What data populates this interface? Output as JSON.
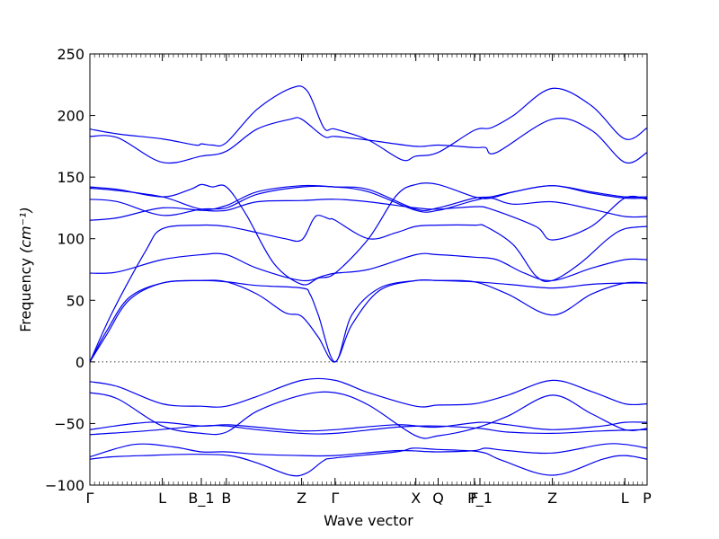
{
  "chart_data": {
    "type": "line",
    "xlabel": "Wave vector",
    "ylabel": "Frequency",
    "ylabel_unit": "(cm⁻¹)",
    "ylim": [
      -100,
      250
    ],
    "yticks": [
      -100,
      -50,
      0,
      50,
      100,
      150,
      200,
      250
    ],
    "grid": false,
    "zero_line": "dotted",
    "line_color": "#0000ee",
    "xticks": [
      {
        "label": "Γ",
        "x": 0.0
      },
      {
        "label": "L",
        "x": 0.13
      },
      {
        "label": "B_1",
        "x": 0.2
      },
      {
        "label": "B",
        "x": 0.245
      },
      {
        "label": "Z",
        "x": 0.38
      },
      {
        "label": "Γ",
        "x": 0.44
      },
      {
        "label": "X",
        "x": 0.585
      },
      {
        "label": "Q",
        "x": 0.625
      },
      {
        "label": "F",
        "x": 0.69
      },
      {
        "label": "P_1",
        "x": 0.7
      },
      {
        "label": "Z",
        "x": 0.83
      },
      {
        "label": "L",
        "x": 0.96
      },
      {
        "label": "P",
        "x": 1.0
      }
    ],
    "x_range": [
      0,
      1
    ],
    "series": [
      {
        "values": [
          [
            0,
            -79
          ],
          [
            0.04,
            -77
          ],
          [
            0.1,
            -76
          ],
          [
            0.18,
            -75
          ],
          [
            0.25,
            -76
          ],
          [
            0.3,
            -82
          ],
          [
            0.36,
            -92
          ],
          [
            0.39,
            -90
          ],
          [
            0.42,
            -80
          ],
          [
            0.44,
            -78
          ],
          [
            0.55,
            -73
          ],
          [
            0.58,
            -70
          ],
          [
            0.62,
            -71
          ],
          [
            0.7,
            -73
          ],
          [
            0.74,
            -80
          ],
          [
            0.83,
            -92
          ],
          [
            0.92,
            -79
          ],
          [
            0.96,
            -76
          ],
          [
            1.0,
            -79
          ]
        ]
      },
      {
        "values": [
          [
            0,
            -77
          ],
          [
            0.08,
            -67
          ],
          [
            0.15,
            -69
          ],
          [
            0.2,
            -73
          ],
          [
            0.245,
            -73
          ],
          [
            0.3,
            -75
          ],
          [
            0.38,
            -76
          ],
          [
            0.44,
            -76
          ],
          [
            0.55,
            -72
          ],
          [
            0.62,
            -73
          ],
          [
            0.69,
            -72
          ],
          [
            0.71,
            -70
          ],
          [
            0.75,
            -72
          ],
          [
            0.83,
            -74
          ],
          [
            0.92,
            -67
          ],
          [
            0.96,
            -67
          ],
          [
            1.0,
            -70
          ]
        ]
      },
      {
        "values": [
          [
            0,
            -59
          ],
          [
            0.1,
            -56
          ],
          [
            0.2,
            -52
          ],
          [
            0.245,
            -52
          ],
          [
            0.3,
            -55
          ],
          [
            0.38,
            -58
          ],
          [
            0.44,
            -58
          ],
          [
            0.55,
            -53
          ],
          [
            0.62,
            -52
          ],
          [
            0.7,
            -54
          ],
          [
            0.75,
            -57
          ],
          [
            0.83,
            -58
          ],
          [
            0.92,
            -56
          ],
          [
            1.0,
            -55
          ]
        ]
      },
      {
        "values": [
          [
            0,
            -55
          ],
          [
            0.08,
            -50
          ],
          [
            0.13,
            -49
          ],
          [
            0.2,
            -52
          ],
          [
            0.245,
            -51
          ],
          [
            0.3,
            -53
          ],
          [
            0.38,
            -56
          ],
          [
            0.44,
            -55
          ],
          [
            0.55,
            -51
          ],
          [
            0.62,
            -53
          ],
          [
            0.7,
            -49
          ],
          [
            0.75,
            -51
          ],
          [
            0.83,
            -55
          ],
          [
            0.92,
            -52
          ],
          [
            0.96,
            -49
          ],
          [
            1.0,
            -49
          ]
        ]
      },
      {
        "values": [
          [
            0,
            -25
          ],
          [
            0.05,
            -30
          ],
          [
            0.13,
            -52
          ],
          [
            0.2,
            -58
          ],
          [
            0.245,
            -57
          ],
          [
            0.3,
            -40
          ],
          [
            0.38,
            -27
          ],
          [
            0.44,
            -25
          ],
          [
            0.5,
            -35
          ],
          [
            0.585,
            -60
          ],
          [
            0.625,
            -60
          ],
          [
            0.69,
            -54
          ],
          [
            0.75,
            -44
          ],
          [
            0.83,
            -27
          ],
          [
            0.9,
            -42
          ],
          [
            0.96,
            -55
          ],
          [
            1.0,
            -54
          ]
        ]
      },
      {
        "values": [
          [
            0,
            -16
          ],
          [
            0.05,
            -20
          ],
          [
            0.13,
            -34
          ],
          [
            0.2,
            -36
          ],
          [
            0.245,
            -36
          ],
          [
            0.3,
            -28
          ],
          [
            0.38,
            -15
          ],
          [
            0.44,
            -15
          ],
          [
            0.5,
            -25
          ],
          [
            0.585,
            -36
          ],
          [
            0.625,
            -35
          ],
          [
            0.69,
            -34
          ],
          [
            0.75,
            -27
          ],
          [
            0.83,
            -15
          ],
          [
            0.9,
            -24
          ],
          [
            0.96,
            -34
          ],
          [
            1.0,
            -34
          ]
        ]
      },
      {
        "values": [
          [
            0,
            0
          ],
          [
            0.03,
            25
          ],
          [
            0.07,
            52
          ],
          [
            0.13,
            64
          ],
          [
            0.2,
            66
          ],
          [
            0.245,
            65
          ],
          [
            0.3,
            62
          ],
          [
            0.38,
            60
          ],
          [
            0.395,
            55
          ],
          [
            0.41,
            38
          ],
          [
            0.44,
            0
          ],
          [
            0.47,
            38
          ],
          [
            0.52,
            60
          ],
          [
            0.585,
            66
          ],
          [
            0.625,
            66
          ],
          [
            0.69,
            65
          ],
          [
            0.75,
            63
          ],
          [
            0.83,
            60
          ],
          [
            0.9,
            63
          ],
          [
            0.96,
            64
          ],
          [
            1.0,
            64
          ]
        ]
      },
      {
        "values": [
          [
            0,
            0
          ],
          [
            0.03,
            22
          ],
          [
            0.07,
            50
          ],
          [
            0.13,
            64
          ],
          [
            0.2,
            66
          ],
          [
            0.245,
            65
          ],
          [
            0.3,
            55
          ],
          [
            0.35,
            40
          ],
          [
            0.38,
            37
          ],
          [
            0.41,
            20
          ],
          [
            0.44,
            0
          ],
          [
            0.47,
            30
          ],
          [
            0.52,
            58
          ],
          [
            0.585,
            66
          ],
          [
            0.625,
            66
          ],
          [
            0.69,
            65
          ],
          [
            0.75,
            55
          ],
          [
            0.83,
            38
          ],
          [
            0.9,
            55
          ],
          [
            0.96,
            64
          ],
          [
            1.0,
            64
          ]
        ]
      },
      {
        "values": [
          [
            0,
            72
          ],
          [
            0.05,
            73
          ],
          [
            0.13,
            83
          ],
          [
            0.2,
            87
          ],
          [
            0.245,
            87
          ],
          [
            0.3,
            76
          ],
          [
            0.38,
            66
          ],
          [
            0.42,
            70
          ],
          [
            0.44,
            72
          ],
          [
            0.5,
            75
          ],
          [
            0.585,
            87
          ],
          [
            0.625,
            87
          ],
          [
            0.69,
            85
          ],
          [
            0.73,
            83
          ],
          [
            0.78,
            72
          ],
          [
            0.83,
            66
          ],
          [
            0.9,
            76
          ],
          [
            0.96,
            83
          ],
          [
            1.0,
            83
          ]
        ]
      },
      {
        "values": [
          [
            0,
            0
          ],
          [
            0.04,
            40
          ],
          [
            0.1,
            90
          ],
          [
            0.13,
            108
          ],
          [
            0.2,
            111
          ],
          [
            0.245,
            110
          ],
          [
            0.3,
            105
          ],
          [
            0.35,
            100
          ],
          [
            0.38,
            99
          ],
          [
            0.4,
            115
          ],
          [
            0.41,
            119
          ],
          [
            0.43,
            116
          ],
          [
            0.44,
            115
          ],
          [
            0.5,
            100
          ],
          [
            0.55,
            105
          ],
          [
            0.585,
            110
          ],
          [
            0.625,
            111
          ],
          [
            0.69,
            111
          ],
          [
            0.71,
            110
          ],
          [
            0.76,
            95
          ],
          [
            0.8,
            70
          ],
          [
            0.83,
            66
          ],
          [
            0.88,
            80
          ],
          [
            0.93,
            100
          ],
          [
            0.96,
            108
          ],
          [
            1.0,
            110
          ]
        ]
      },
      {
        "values": [
          [
            0,
            115
          ],
          [
            0.05,
            117
          ],
          [
            0.13,
            125
          ],
          [
            0.2,
            123
          ],
          [
            0.245,
            123
          ],
          [
            0.3,
            130
          ],
          [
            0.38,
            131
          ],
          [
            0.44,
            132
          ],
          [
            0.5,
            130
          ],
          [
            0.585,
            125
          ],
          [
            0.625,
            124
          ],
          [
            0.69,
            126
          ],
          [
            0.72,
            124
          ],
          [
            0.8,
            110
          ],
          [
            0.83,
            99
          ],
          [
            0.9,
            110
          ],
          [
            0.96,
            133
          ],
          [
            1.0,
            132
          ]
        ]
      },
      {
        "values": [
          [
            0,
            132
          ],
          [
            0.05,
            130
          ],
          [
            0.13,
            119
          ],
          [
            0.2,
            124
          ],
          [
            0.245,
            125
          ],
          [
            0.3,
            136
          ],
          [
            0.38,
            142
          ],
          [
            0.44,
            142
          ],
          [
            0.5,
            138
          ],
          [
            0.585,
            123
          ],
          [
            0.625,
            123
          ],
          [
            0.69,
            131
          ],
          [
            0.72,
            133
          ],
          [
            0.76,
            128
          ],
          [
            0.83,
            130
          ],
          [
            0.9,
            124
          ],
          [
            0.96,
            118
          ],
          [
            1.0,
            118
          ]
        ]
      },
      {
        "values": [
          [
            0,
            141
          ],
          [
            0.05,
            139
          ],
          [
            0.13,
            134
          ],
          [
            0.2,
            124
          ],
          [
            0.245,
            127
          ],
          [
            0.3,
            138
          ],
          [
            0.38,
            143
          ],
          [
            0.44,
            142
          ],
          [
            0.5,
            140
          ],
          [
            0.585,
            124
          ],
          [
            0.625,
            125
          ],
          [
            0.69,
            133
          ],
          [
            0.72,
            134
          ],
          [
            0.76,
            138
          ],
          [
            0.83,
            143
          ],
          [
            0.9,
            137
          ],
          [
            0.96,
            133
          ],
          [
            1.0,
            133
          ]
        ]
      },
      {
        "values": [
          [
            0,
            142
          ],
          [
            0.05,
            140
          ],
          [
            0.13,
            134
          ],
          [
            0.18,
            140
          ],
          [
            0.2,
            144
          ],
          [
            0.22,
            142
          ],
          [
            0.245,
            142
          ],
          [
            0.28,
            120
          ],
          [
            0.33,
            80
          ],
          [
            0.38,
            63
          ],
          [
            0.41,
            68
          ],
          [
            0.44,
            72
          ],
          [
            0.5,
            100
          ],
          [
            0.55,
            135
          ],
          [
            0.585,
            144
          ],
          [
            0.625,
            144
          ],
          [
            0.69,
            134
          ],
          [
            0.72,
            133
          ],
          [
            0.76,
            138
          ],
          [
            0.83,
            143
          ],
          [
            0.9,
            138
          ],
          [
            0.96,
            134
          ],
          [
            1.0,
            134
          ]
        ]
      },
      {
        "values": [
          [
            0,
            183
          ],
          [
            0.05,
            182
          ],
          [
            0.13,
            162
          ],
          [
            0.2,
            167
          ],
          [
            0.245,
            171
          ],
          [
            0.3,
            189
          ],
          [
            0.36,
            197
          ],
          [
            0.38,
            197
          ],
          [
            0.42,
            183
          ],
          [
            0.44,
            183
          ],
          [
            0.5,
            180
          ],
          [
            0.585,
            175
          ],
          [
            0.625,
            176
          ],
          [
            0.69,
            174
          ],
          [
            0.71,
            174
          ],
          [
            0.73,
            170
          ],
          [
            0.83,
            197
          ],
          [
            0.9,
            188
          ],
          [
            0.96,
            162
          ],
          [
            1.0,
            170
          ]
        ]
      },
      {
        "values": [
          [
            0,
            189
          ],
          [
            0.05,
            185
          ],
          [
            0.13,
            181
          ],
          [
            0.19,
            176
          ],
          [
            0.2,
            177
          ],
          [
            0.22,
            176
          ],
          [
            0.245,
            178
          ],
          [
            0.3,
            205
          ],
          [
            0.36,
            222
          ],
          [
            0.39,
            220
          ],
          [
            0.42,
            190
          ],
          [
            0.44,
            189
          ],
          [
            0.5,
            180
          ],
          [
            0.56,
            164
          ],
          [
            0.585,
            167
          ],
          [
            0.625,
            170
          ],
          [
            0.69,
            188
          ],
          [
            0.72,
            190
          ],
          [
            0.76,
            200
          ],
          [
            0.83,
            222
          ],
          [
            0.9,
            208
          ],
          [
            0.96,
            181
          ],
          [
            1.0,
            190
          ]
        ]
      }
    ]
  }
}
